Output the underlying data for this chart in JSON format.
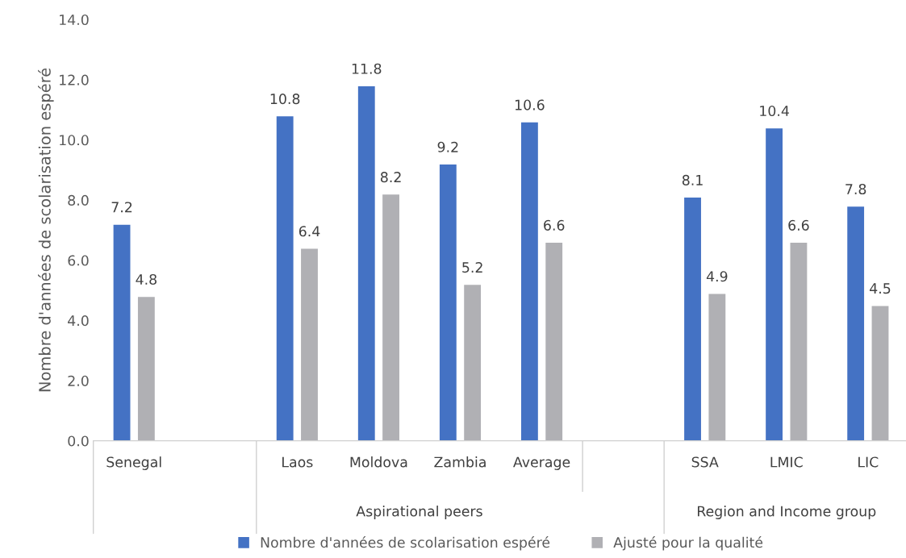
{
  "chart_data": {
    "type": "bar",
    "ylabel": "Nombre d'années de scolarisation espéré",
    "categories": [
      "Senegal",
      null,
      "Laos",
      "Moldova",
      "Zambia",
      "Average",
      null,
      "SSA",
      "LMIC",
      "LIC"
    ],
    "series": [
      {
        "name": "Nombre d'années de scolarisation espéré",
        "color": "#4472c4",
        "values": [
          7.2,
          null,
          10.8,
          11.8,
          9.2,
          10.6,
          null,
          8.1,
          10.4,
          7.8
        ]
      },
      {
        "name": "Ajusté pour la qualité",
        "color": "#b0b0b4",
        "values": [
          4.8,
          null,
          6.4,
          8.2,
          5.2,
          6.6,
          null,
          4.9,
          6.6,
          4.5
        ]
      }
    ],
    "ylim": [
      0,
      14
    ],
    "yticks": [
      {
        "value": 0,
        "label": "0.0"
      },
      {
        "value": 2,
        "label": "2.0"
      },
      {
        "value": 4,
        "label": "4.0"
      },
      {
        "value": 6,
        "label": "6.0"
      },
      {
        "value": 8,
        "label": "8.0"
      },
      {
        "value": 10,
        "label": "10.0"
      },
      {
        "value": 12,
        "label": "12.0"
      },
      {
        "value": 14,
        "label": "14.0"
      }
    ],
    "annotations": [
      "Aspirational peers",
      "Region and Income group"
    ],
    "data_labels": true,
    "grid": false,
    "legend": "bottom"
  }
}
